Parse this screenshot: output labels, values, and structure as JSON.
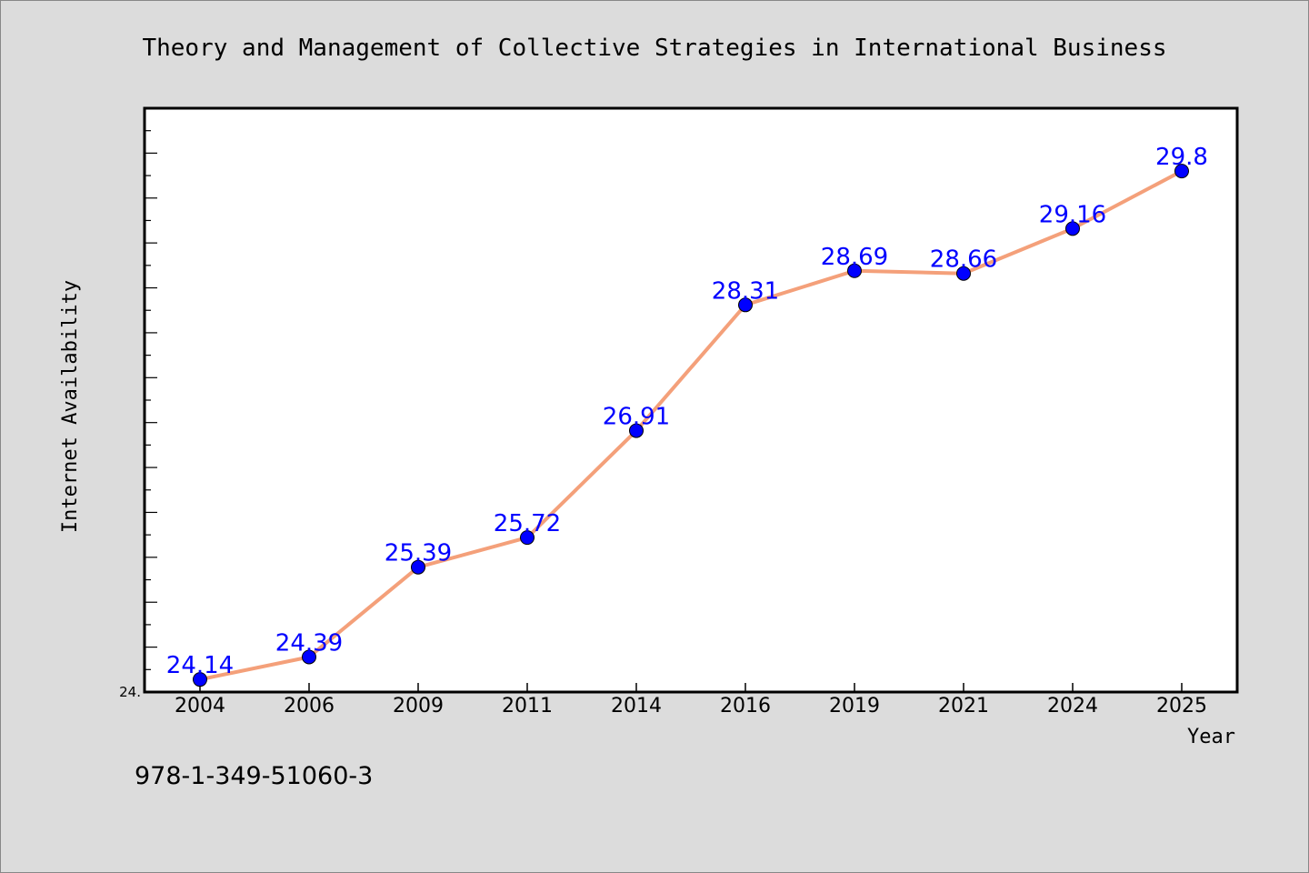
{
  "chart_data": {
    "type": "line",
    "title": "Theory and Management of Collective Strategies in International Business",
    "xlabel": "Year",
    "ylabel": "Internet Availability",
    "categories": [
      "2004",
      "2006",
      "2009",
      "2011",
      "2014",
      "2016",
      "2019",
      "2021",
      "2024",
      "2025"
    ],
    "series": [
      {
        "values": [
          24.14,
          24.39,
          25.39,
          25.72,
          26.91,
          28.31,
          28.69,
          28.66,
          29.16,
          29.8
        ]
      }
    ],
    "data_labels": [
      "24.14",
      "24.39",
      "25.39",
      "25.72",
      "26.91",
      "28.31",
      "28.69",
      "28.66",
      "29.16",
      "29.8"
    ],
    "ylim": [
      24.0,
      30.5
    ],
    "y_tick_labels": [
      "24."
    ],
    "grid": false,
    "line_color": "#f4a07a",
    "marker_color": "#0000ff",
    "label_color": "#0000ff"
  },
  "footer": {
    "isbn": "978-1-349-51060-3"
  }
}
